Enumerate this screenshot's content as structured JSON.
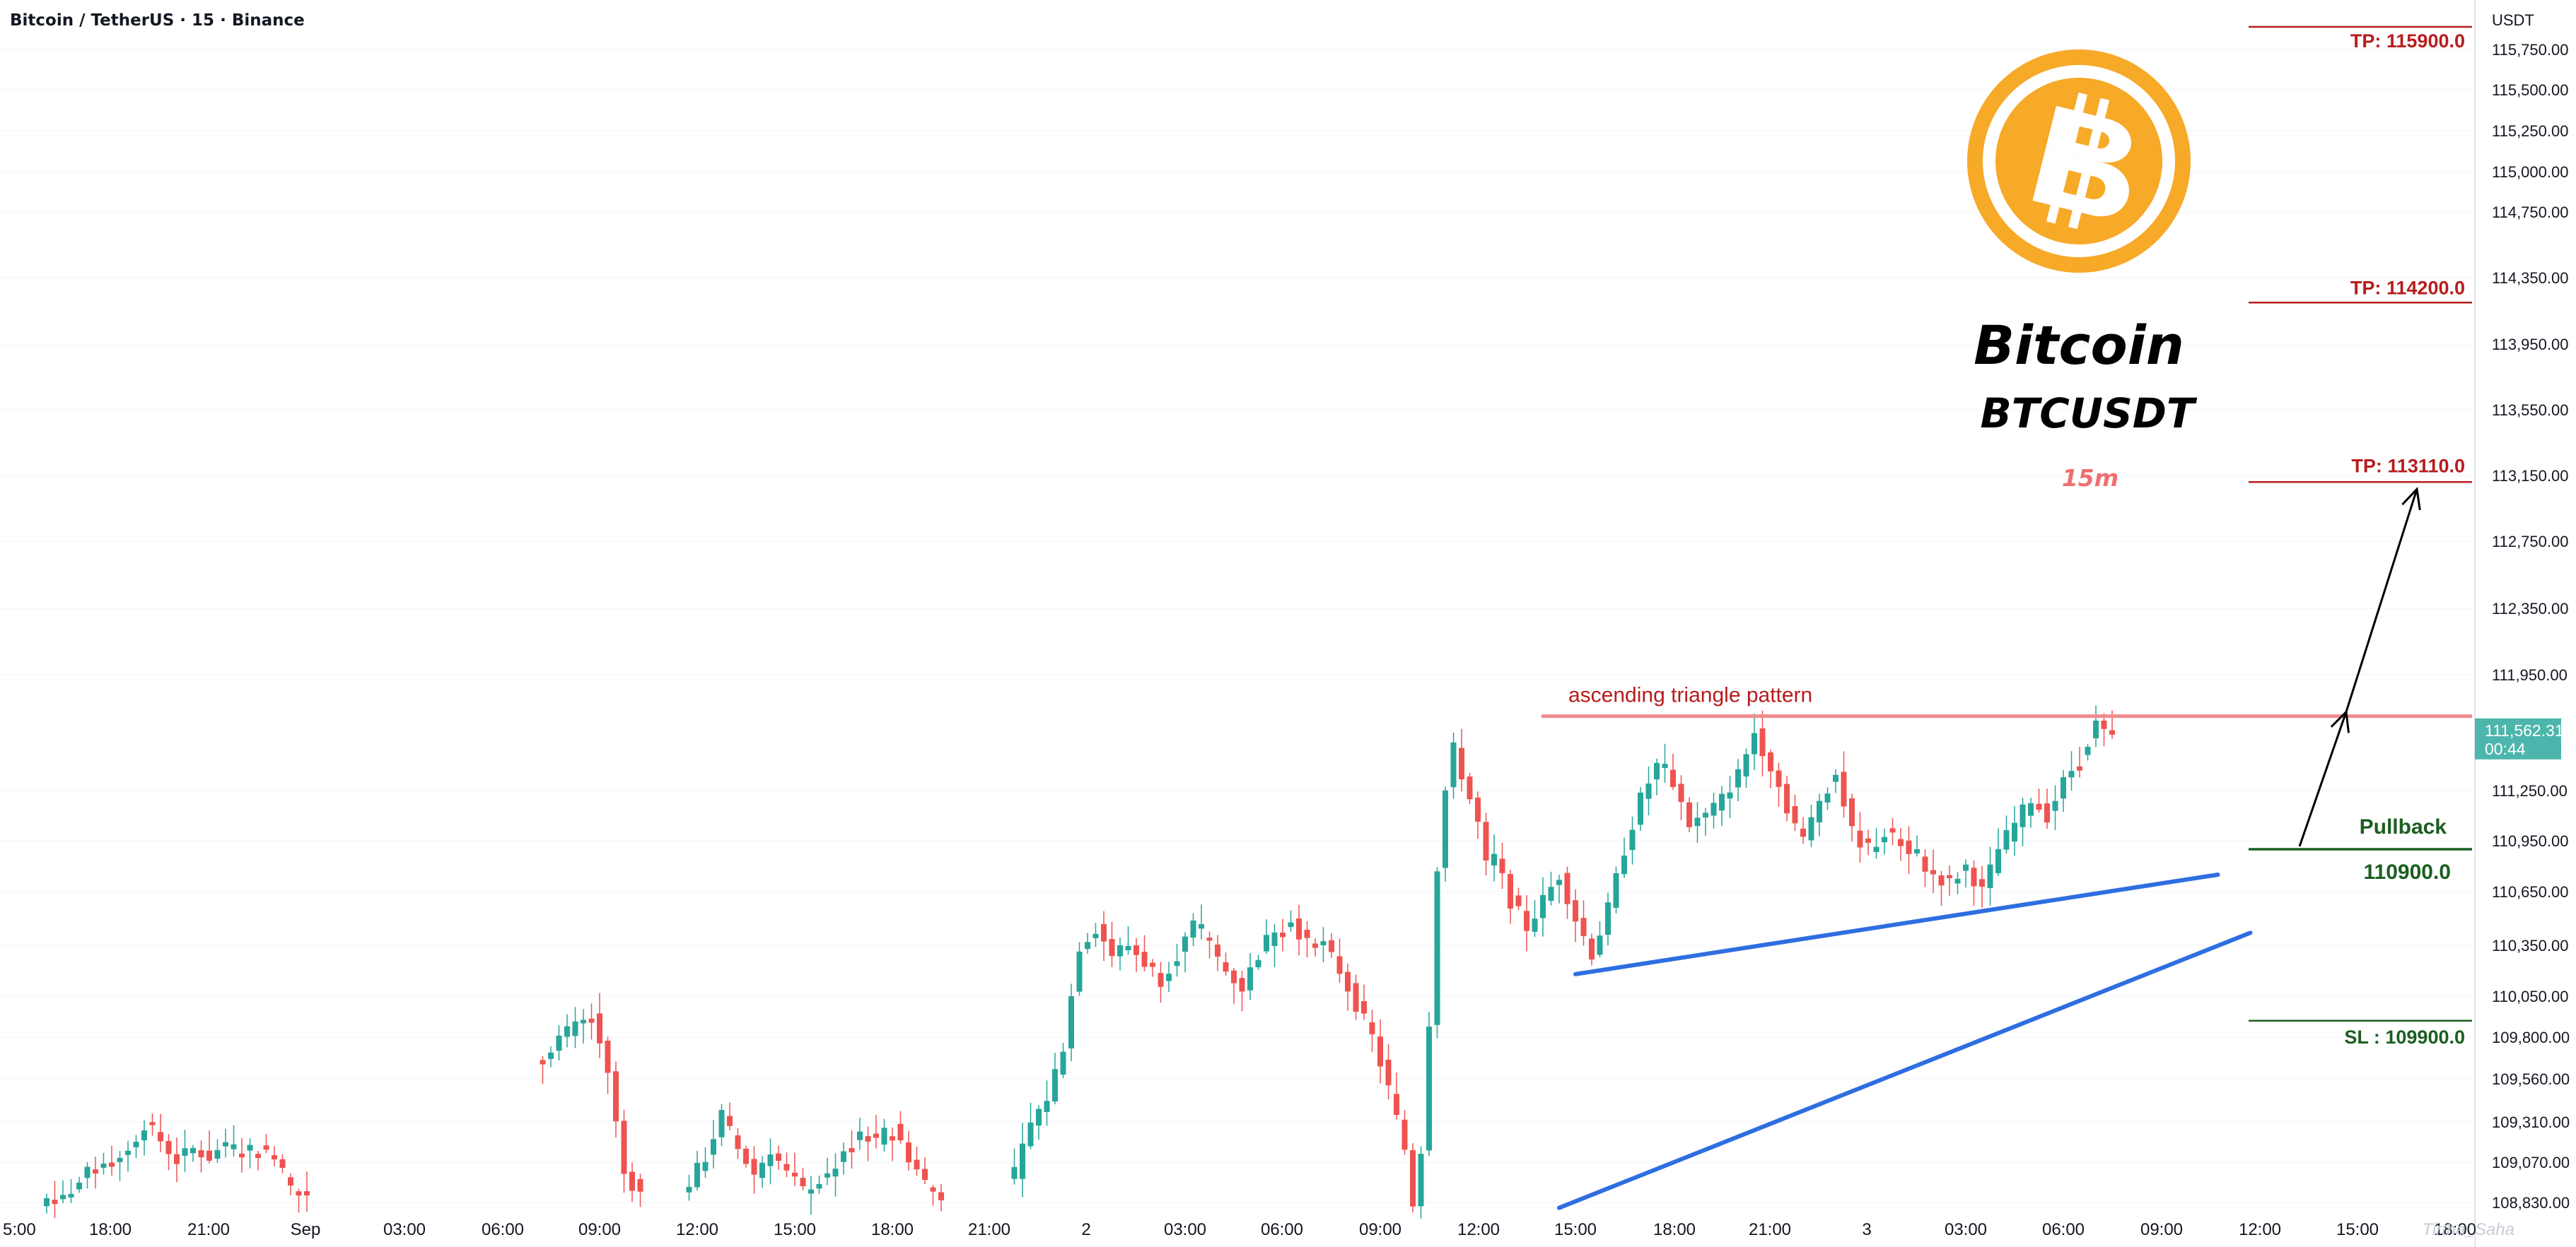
{
  "header": {
    "symbol_title": "Bitcoin / TetherUS · 15 · Binance"
  },
  "branding": {
    "logo": "bitcoin-logo",
    "name": "Bitcoin",
    "ticker": "BTCUSDT",
    "timeframe": "15m",
    "watermark": "Tirtha_Saha"
  },
  "colors": {
    "bullish": "#26a69a",
    "bearish": "#ef5350",
    "target": "#b71c1c",
    "stop_loss": "#1b5e20",
    "trendline": "#2f6ee0",
    "resistance": "#f08c8c",
    "logo_orange": "#f7a928",
    "price_tag": "#4db6ac",
    "grid": "#f0f3fa"
  },
  "price_axis": {
    "unit": "USDT",
    "ticks": [
      "115,750.00",
      "115,500.00",
      "115,250.00",
      "115,000.00",
      "114,750.00",
      "114,350.00",
      "113,950.00",
      "113,550.00",
      "113,150.00",
      "112,750.00",
      "112,350.00",
      "111,950.00",
      "111,250.00",
      "110,950.00",
      "110,650.00",
      "110,350.00",
      "110,050.00",
      "109,800.00",
      "109,560.00",
      "109,310.00",
      "109,070.00",
      "108,830.00"
    ],
    "current_price": "111,562.31",
    "countdown": "00:44"
  },
  "time_axis": {
    "ticks": [
      "5:00",
      "18:00",
      "21:00",
      "Sep",
      "03:00",
      "06:00",
      "09:00",
      "12:00",
      "15:00",
      "18:00",
      "21:00",
      "2",
      "03:00",
      "06:00",
      "09:00",
      "12:00",
      "15:00",
      "18:00",
      "21:00",
      "3",
      "03:00",
      "06:00",
      "09:00",
      "12:00",
      "15:00",
      "18:00"
    ]
  },
  "annotations": {
    "tp1": "TP: 115900.0",
    "tp2": "TP: 114200.0",
    "tp3": "TP: 113110.0",
    "pattern": "ascending triangle pattern",
    "pullback": "Pullback",
    "pullback_level": "110900.0",
    "stop_loss": "SL : 109900.0"
  },
  "chart_data": {
    "type": "candlestick",
    "timeframe": "15m",
    "y_unit": "USDT",
    "current_price": 111562.31,
    "resistance_level": 111700,
    "levels": [
      {
        "label": "TP",
        "price": 115900.0
      },
      {
        "label": "TP",
        "price": 114200.0
      },
      {
        "label": "TP",
        "price": 113110.0
      },
      {
        "label": "Pullback",
        "price": 110900.0
      },
      {
        "label": "SL",
        "price": 109900.0
      }
    ],
    "close_path": [
      [
        0,
        108850
      ],
      [
        2,
        108860
      ],
      [
        4,
        108950
      ],
      [
        6,
        109050
      ],
      [
        8,
        109080
      ],
      [
        10,
        109150
      ],
      [
        12,
        109300
      ],
      [
        14,
        109200
      ],
      [
        16,
        109080
      ],
      [
        18,
        109150
      ],
      [
        20,
        109100
      ],
      [
        22,
        109170
      ],
      [
        24,
        109130
      ],
      [
        26,
        109150
      ],
      [
        28,
        109100
      ],
      [
        30,
        108920
      ],
      [
        32,
        108880
      ],
      [
        61,
        109700
      ],
      [
        63,
        109800
      ],
      [
        65,
        109860
      ],
      [
        67,
        109920
      ],
      [
        69,
        109600
      ],
      [
        71,
        109000
      ],
      [
        73,
        108880
      ],
      [
        79,
        108950
      ],
      [
        81,
        109100
      ],
      [
        83,
        109350
      ],
      [
        85,
        109150
      ],
      [
        87,
        109000
      ],
      [
        89,
        109150
      ],
      [
        91,
        109000
      ],
      [
        93,
        108900
      ],
      [
        96,
        108980
      ],
      [
        98,
        109150
      ],
      [
        100,
        109250
      ],
      [
        102,
        109200
      ],
      [
        104,
        109280
      ],
      [
        106,
        109100
      ],
      [
        108,
        108950
      ],
      [
        110,
        108880
      ],
      [
        119,
        109000
      ],
      [
        121,
        109300
      ],
      [
        123,
        109450
      ],
      [
        125,
        109750
      ],
      [
        127,
        110350
      ],
      [
        129,
        110450
      ],
      [
        131,
        110300
      ],
      [
        133,
        110350
      ],
      [
        135,
        110250
      ],
      [
        137,
        110150
      ],
      [
        139,
        110300
      ],
      [
        141,
        110450
      ],
      [
        143,
        110350
      ],
      [
        145,
        110200
      ],
      [
        147,
        110100
      ],
      [
        149,
        110300
      ],
      [
        151,
        110450
      ],
      [
        153,
        110500
      ],
      [
        155,
        110350
      ],
      [
        157,
        110350
      ],
      [
        159,
        110200
      ],
      [
        161,
        110000
      ],
      [
        163,
        109800
      ],
      [
        165,
        109500
      ],
      [
        167,
        109150
      ],
      [
        168,
        108830
      ],
      [
        169,
        109150
      ],
      [
        170,
        109900
      ],
      [
        171,
        110800
      ],
      [
        172,
        111250
      ],
      [
        173,
        111500
      ],
      [
        174,
        111350
      ],
      [
        175,
        111200
      ],
      [
        176,
        111050
      ],
      [
        177,
        110800
      ],
      [
        178,
        110850
      ],
      [
        180,
        110600
      ],
      [
        182,
        110450
      ],
      [
        184,
        110600
      ],
      [
        186,
        110750
      ],
      [
        188,
        110500
      ],
      [
        190,
        110300
      ],
      [
        192,
        110550
      ],
      [
        194,
        110900
      ],
      [
        196,
        111200
      ],
      [
        198,
        111400
      ],
      [
        200,
        111300
      ],
      [
        202,
        111050
      ],
      [
        204,
        111100
      ],
      [
        206,
        111200
      ],
      [
        208,
        111350
      ],
      [
        210,
        111600
      ],
      [
        212,
        111400
      ],
      [
        214,
        111150
      ],
      [
        216,
        110950
      ],
      [
        218,
        111200
      ],
      [
        220,
        111350
      ],
      [
        222,
        111000
      ],
      [
        224,
        110900
      ],
      [
        226,
        111000
      ],
      [
        228,
        110950
      ],
      [
        230,
        110850
      ],
      [
        232,
        110750
      ],
      [
        234,
        110700
      ],
      [
        236,
        110800
      ],
      [
        238,
        110650
      ],
      [
        240,
        110900
      ],
      [
        242,
        111050
      ],
      [
        244,
        111200
      ],
      [
        246,
        111100
      ],
      [
        248,
        111300
      ],
      [
        250,
        111450
      ],
      [
        252,
        111650
      ],
      [
        254,
        111550
      ]
    ],
    "trendlines": [
      {
        "name": "triangle support",
        "from": [
          188,
          110180
        ],
        "to": [
          267,
          110750
        ]
      },
      {
        "name": "channel support",
        "from": [
          186,
          108800
        ],
        "to": [
          271,
          110420
        ]
      }
    ],
    "xlabel": "",
    "ylabel": "",
    "grid": true
  }
}
